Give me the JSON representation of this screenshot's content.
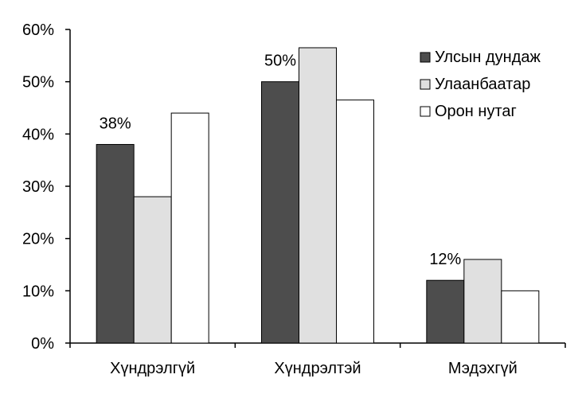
{
  "chart_data": {
    "type": "bar",
    "categories": [
      "Хүндрэлгүй",
      "Хүндрэлтэй",
      "Мэдэхгүй"
    ],
    "series": [
      {
        "name": "Улсын дундаж",
        "values": [
          38,
          50,
          12
        ],
        "color": "#4d4d4d"
      },
      {
        "name": "Улаанбаатар",
        "values": [
          28,
          56.5,
          16
        ],
        "color": "#e0e0e0"
      },
      {
        "name": "Орон нутаг",
        "values": [
          44,
          46.5,
          10
        ],
        "color": "#ffffff"
      }
    ],
    "data_labels": [
      "38%",
      "50%",
      "12%"
    ],
    "y_ticks": [
      "0%",
      "10%",
      "20%",
      "30%",
      "40%",
      "50%",
      "60%"
    ],
    "ylim": [
      0,
      60
    ],
    "y_unit": "%",
    "grid": false,
    "legend_position": "top-right",
    "title": "",
    "xlabel": "",
    "ylabel": ""
  }
}
